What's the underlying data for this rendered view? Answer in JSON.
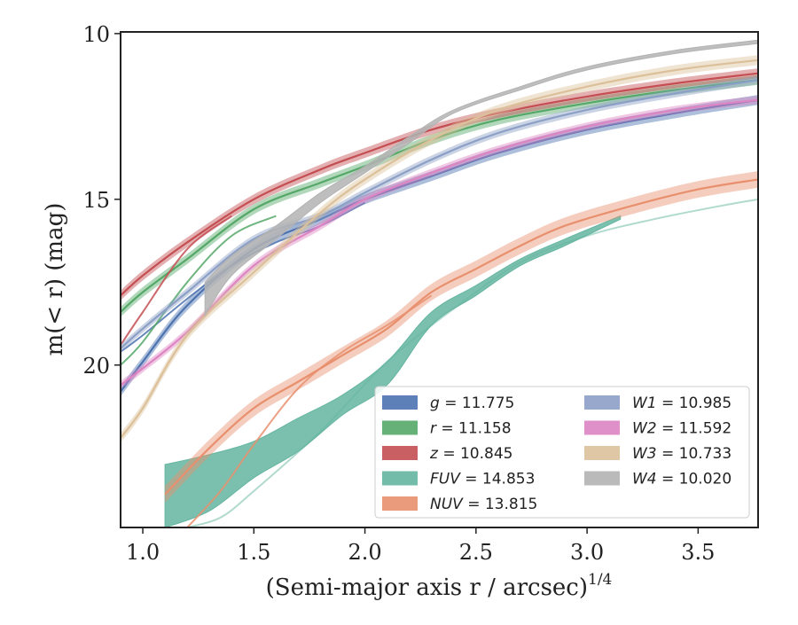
{
  "chart_data": {
    "type": "line",
    "xlabel": "(Semi-major axis r / arcsec)",
    "xlabel_var": "r",
    "xlabel_exponent": "1/4",
    "ylabel": "m(< r) (mag)",
    "xlim": [
      0.9,
      3.77
    ],
    "ylim": [
      24.9,
      9.95
    ],
    "y_inverted": true,
    "x_ticks": [
      1.0,
      1.5,
      2.0,
      2.5,
      3.0,
      3.5
    ],
    "x_tick_labels": [
      "1.0",
      "1.5",
      "2.0",
      "2.5",
      "3.0",
      "3.5"
    ],
    "y_ticks": [
      10,
      15,
      20
    ],
    "y_tick_labels": [
      "10",
      "15",
      "20"
    ],
    "grid": false,
    "legend_placement": "lower-right",
    "legend_columns": 2,
    "series": [
      {
        "name": "g",
        "legend_value": "11.775",
        "label": "g = 11.775",
        "color": "#4c72b0",
        "x": [
          0.9,
          1.0,
          1.2,
          1.5,
          1.8,
          2.0,
          2.3,
          2.6,
          3.0,
          3.4,
          3.77
        ],
        "y": [
          20.8,
          19.9,
          18.2,
          16.5,
          15.6,
          15.0,
          14.3,
          13.6,
          12.9,
          12.4,
          12.0
        ],
        "band": 0.15,
        "secondary": {
          "x": [
            0.9,
            1.0,
            1.2,
            1.4,
            1.6,
            1.8,
            2.0
          ],
          "y": [
            19.6,
            19.1,
            18.0,
            17.0,
            16.3,
            15.8,
            15.1
          ]
        }
      },
      {
        "name": "r",
        "legend_value": "11.158",
        "label": "r = 11.158",
        "color": "#55a868",
        "x": [
          0.9,
          1.0,
          1.2,
          1.5,
          1.8,
          2.0,
          2.3,
          2.6,
          3.0,
          3.4,
          3.77
        ],
        "y": [
          18.4,
          17.8,
          16.8,
          15.3,
          14.5,
          14.0,
          13.2,
          12.6,
          12.1,
          11.7,
          11.4
        ],
        "band": 0.15,
        "secondary": {
          "x": [
            0.9,
            1.0,
            1.2,
            1.4,
            1.6
          ],
          "y": [
            20.0,
            19.3,
            17.5,
            16.1,
            15.5
          ]
        }
      },
      {
        "name": "z",
        "legend_value": "10.845",
        "label": "z = 10.845",
        "color": "#c44e52",
        "x": [
          0.9,
          1.0,
          1.2,
          1.5,
          1.8,
          2.0,
          2.3,
          2.6,
          3.0,
          3.4,
          3.77
        ],
        "y": [
          17.9,
          17.3,
          16.3,
          15.0,
          14.1,
          13.6,
          12.9,
          12.4,
          11.9,
          11.5,
          11.2
        ],
        "band": 0.15,
        "secondary": {
          "x": [
            0.9,
            1.0,
            1.2,
            1.4
          ],
          "y": [
            19.4,
            18.4,
            16.5,
            15.5
          ]
        }
      },
      {
        "name": "FUV",
        "legend_value": "14.853",
        "label": "FUV = 14.853",
        "color": "#64b5a0",
        "x": [
          1.1,
          1.3,
          1.5,
          1.7,
          1.9,
          2.1,
          2.3,
          2.5,
          2.7,
          2.9,
          3.15
        ],
        "y_upper": [
          23.0,
          22.7,
          22.3,
          21.6,
          20.9,
          19.9,
          18.4,
          17.6,
          16.8,
          16.2,
          15.5
        ],
        "y_lower": [
          24.9,
          24.4,
          23.4,
          22.6,
          21.5,
          20.6,
          18.8,
          17.9,
          17.0,
          16.4,
          15.6
        ],
        "faint": {
          "x": [
            1.2,
            1.35,
            1.5,
            1.8,
            2.1,
            2.4,
            2.7,
            3.0,
            3.3,
            3.6,
            3.77
          ],
          "y": [
            24.9,
            24.6,
            23.8,
            22.0,
            19.9,
            18.3,
            16.9,
            16.1,
            15.6,
            15.2,
            15.0
          ]
        }
      },
      {
        "name": "NUV",
        "legend_value": "13.815",
        "label": "NUV = 13.815",
        "color": "#e8906e",
        "x": [
          1.1,
          1.3,
          1.5,
          1.7,
          1.9,
          2.1,
          2.3,
          2.5,
          2.7,
          2.9,
          3.2,
          3.5,
          3.77
        ],
        "y": [
          23.9,
          22.5,
          21.3,
          20.5,
          19.7,
          18.9,
          17.8,
          17.1,
          16.4,
          15.8,
          15.2,
          14.7,
          14.4
        ],
        "band": 0.25,
        "secondary": {
          "x": [
            1.2,
            1.35,
            1.5,
            1.7,
            1.9,
            2.1,
            2.3
          ],
          "y": [
            24.9,
            23.8,
            22.4,
            20.7,
            19.6,
            18.8,
            17.9
          ]
        }
      },
      {
        "name": "W1",
        "legend_value": "10.985",
        "label": "W1 = 10.985",
        "color": "#8c9fc6",
        "x": [
          0.9,
          1.0,
          1.2,
          1.5,
          1.8,
          2.0,
          2.3,
          2.6,
          3.0,
          3.4,
          3.77
        ],
        "y": [
          19.5,
          18.9,
          17.8,
          16.2,
          15.5,
          14.8,
          13.8,
          13.0,
          12.3,
          11.8,
          11.4
        ],
        "band": 0.12
      },
      {
        "name": "W2",
        "legend_value": "11.592",
        "label": "W2 = 11.592",
        "color": "#dd84c3",
        "x": [
          0.9,
          1.0,
          1.2,
          1.5,
          1.8,
          2.0,
          2.3,
          2.6,
          3.0,
          3.4,
          3.77
        ],
        "y": [
          20.6,
          20.1,
          19.0,
          17.0,
          15.8,
          15.0,
          14.2,
          13.5,
          12.8,
          12.3,
          12.0
        ],
        "band": 0.12
      },
      {
        "name": "W3",
        "legend_value": "10.733",
        "label": "W3 = 10.733",
        "color": "#dcc09a",
        "x": [
          0.9,
          1.0,
          1.2,
          1.5,
          1.8,
          2.0,
          2.3,
          2.6,
          3.0,
          3.4,
          3.77
        ],
        "y": [
          22.2,
          21.3,
          19.1,
          17.2,
          15.4,
          14.4,
          13.2,
          12.3,
          11.6,
          11.1,
          10.8
        ],
        "band": 0.15
      },
      {
        "name": "W4",
        "legend_value": "10.020",
        "label": "W4 = 10.020",
        "color": "#b3b3b3",
        "x": [
          1.28,
          1.4,
          1.6,
          1.8,
          2.0,
          2.2,
          2.4,
          2.7,
          3.0,
          3.4,
          3.77
        ],
        "y_upper": [
          17.5,
          16.7,
          15.8,
          14.8,
          14.0,
          13.1,
          12.3,
          11.6,
          11.0,
          10.5,
          10.2
        ],
        "y_lower": [
          18.5,
          17.3,
          16.2,
          15.1,
          14.2,
          13.3,
          12.4,
          11.7,
          11.1,
          10.6,
          10.3
        ]
      }
    ]
  }
}
